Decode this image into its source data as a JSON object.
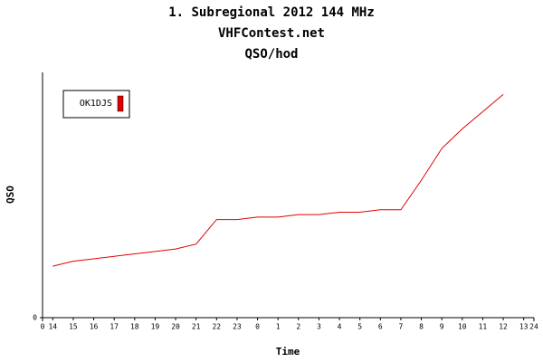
{
  "chart_data": {
    "type": "line",
    "title": "1. Subregional 2012 144 MHz",
    "subtitle": "VHFContest.net",
    "unit_title": "QSO/hod",
    "x_label": "Time",
    "y_label": "QSO",
    "categories": [
      "14",
      "15",
      "16",
      "17",
      "18",
      "19",
      "20",
      "21",
      "22",
      "23",
      "0",
      "1",
      "2",
      "3",
      "4",
      "5",
      "6",
      "7",
      "8",
      "9",
      "10",
      "11",
      "12",
      "13"
    ],
    "xlim": [
      0,
      24
    ],
    "xticks": [
      0,
      24
    ],
    "ylim": [
      0,
      100
    ],
    "yticks": [
      0
    ],
    "series": [
      {
        "name": "OK1DJS",
        "color": "#e00000",
        "values": [
          21,
          23,
          24,
          25,
          26,
          27,
          28,
          30,
          40,
          40,
          41,
          41,
          42,
          42,
          43,
          43,
          44,
          44,
          56,
          69,
          77,
          84,
          91,
          null
        ]
      }
    ]
  }
}
